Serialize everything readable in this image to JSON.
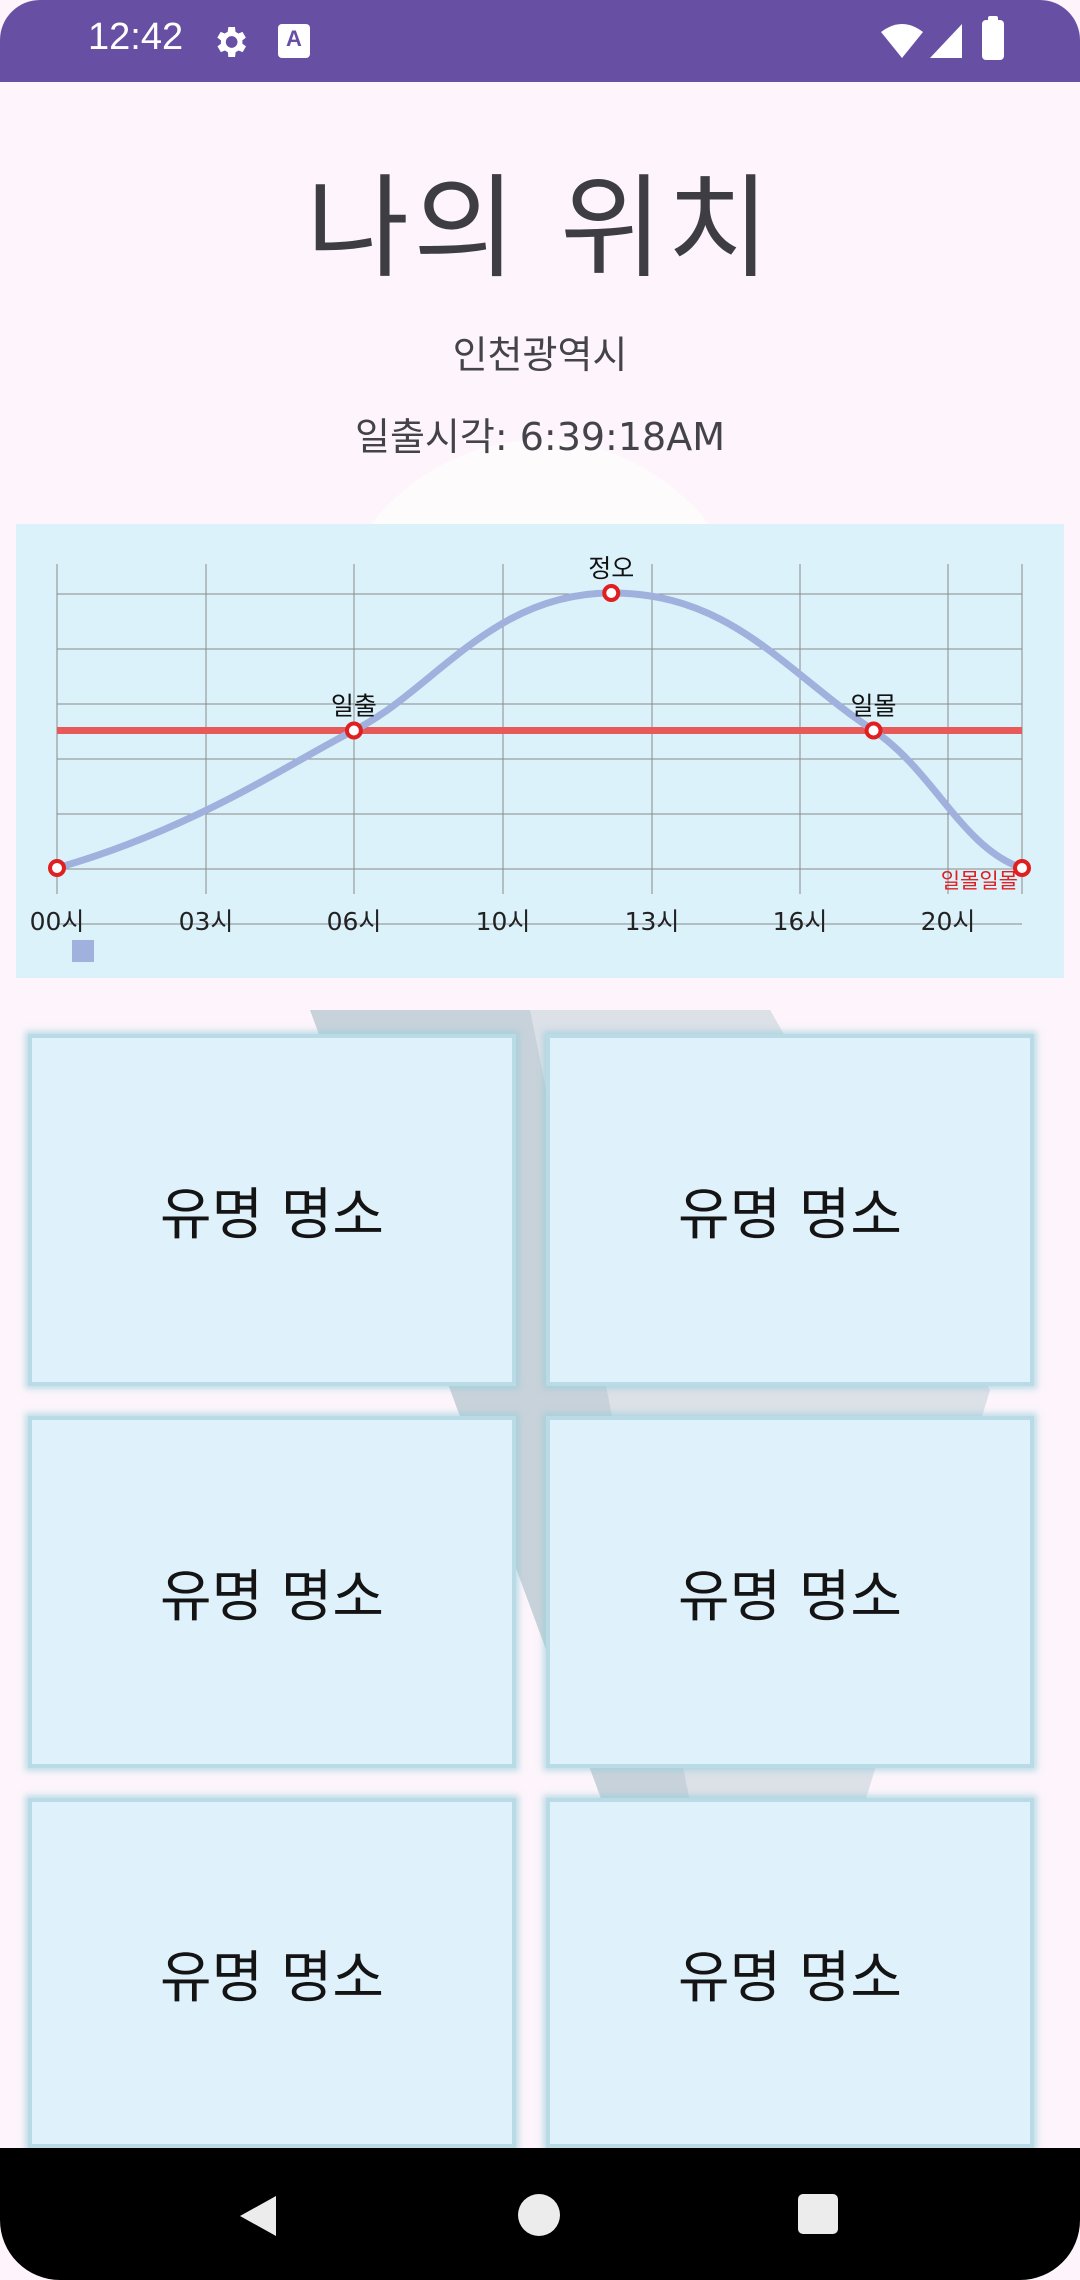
{
  "status_bar": {
    "time": "12:42",
    "icons": [
      "gear-icon",
      "text-a-icon",
      "wifi-icon",
      "signal-icon",
      "battery-icon"
    ],
    "a_glyph": "A"
  },
  "header": {
    "title": "나의 위치",
    "city": "인천광역시",
    "sunrise_text": "일출시각: 6:39:18AM"
  },
  "chart_data": {
    "type": "line",
    "x_tick_labels": [
      "00시",
      "03시",
      "06시",
      "10시",
      "13시",
      "16시",
      "20시"
    ],
    "points": [
      {
        "x": 0,
        "y": 0
      },
      {
        "x": 6,
        "y": 1,
        "label": "일출"
      },
      {
        "x": 11.2,
        "y": 2,
        "label": "정오"
      },
      {
        "x": 16.5,
        "y": 1,
        "label": "일몰"
      },
      {
        "x": 19.5,
        "y": 0,
        "label": "일몰일몰"
      }
    ],
    "horizon_value": 1,
    "ylim": [
      0,
      2
    ],
    "grid": true,
    "colors": {
      "curve": "#9fb1dc",
      "horizon": "#e85a5a",
      "point": "#e02020"
    }
  },
  "cards": [
    {
      "label": "유명 명소"
    },
    {
      "label": "유명 명소"
    },
    {
      "label": "유명 명소"
    },
    {
      "label": "유명 명소"
    },
    {
      "label": "유명 명소"
    },
    {
      "label": "유명 명소"
    }
  ],
  "nav_bar": {
    "icons": [
      "back-icon",
      "home-icon",
      "recents-icon"
    ]
  },
  "colors": {
    "status_bar": "#6750a4",
    "background": "#fdf5fb",
    "card": "#dff2fb"
  }
}
